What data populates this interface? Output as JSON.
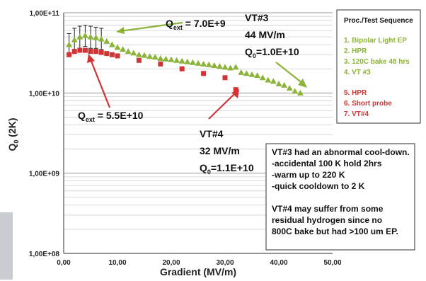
{
  "chart_data": {
    "type": "scatter",
    "title": "",
    "xlabel": "Gradient (MV/m)",
    "ylabel_main": "Q",
    "ylabel_sub": "0",
    "ylabel_tail": " (2K)",
    "xlim": [
      0,
      50
    ],
    "ylim": [
      100000000.0,
      100000000000.0
    ],
    "yscale": "log",
    "grid": "horizontal",
    "x_ticks": [
      0,
      10,
      20,
      30,
      40,
      50
    ],
    "x_tick_labels": [
      "0,00",
      "10,00",
      "20,00",
      "30,00",
      "40,00",
      "50,00"
    ],
    "y_ticks": [
      100000000.0,
      1000000000.0,
      10000000000.0,
      100000000000.0
    ],
    "y_tick_labels": [
      "1,00E+08",
      "1,00E+09",
      "1,00E+10",
      "1,00E+11"
    ],
    "series": [
      {
        "name": "VT #3",
        "color": "#8cb33a",
        "marker": "triangle",
        "points": [
          [
            1,
            40000000000.0
          ],
          [
            2,
            46000000000.0
          ],
          [
            3,
            50000000000.0
          ],
          [
            4,
            52000000000.0
          ],
          [
            5,
            50000000000.0
          ],
          [
            6,
            49000000000.0
          ],
          [
            7,
            47000000000.0
          ],
          [
            8,
            44000000000.0
          ],
          [
            9,
            40000000000.0
          ],
          [
            10,
            37000000000.0
          ],
          [
            11,
            35000000000.0
          ],
          [
            12,
            33000000000.0
          ],
          [
            13,
            31500000000.0
          ],
          [
            14,
            30000000000.0
          ],
          [
            15,
            29500000000.0
          ],
          [
            16,
            28500000000.0
          ],
          [
            17,
            28000000000.0
          ],
          [
            18,
            27000000000.0
          ],
          [
            19,
            26500000000.0
          ],
          [
            20,
            26000000000.0
          ],
          [
            21,
            25500000000.0
          ],
          [
            22,
            25000000000.0
          ],
          [
            23,
            24500000000.0
          ],
          [
            24,
            24000000000.0
          ],
          [
            25,
            23500000000.0
          ],
          [
            26,
            23000000000.0
          ],
          [
            27,
            22500000000.0
          ],
          [
            28,
            22000000000.0
          ],
          [
            29,
            21500000000.0
          ],
          [
            30,
            21000000000.0
          ],
          [
            31,
            20500000000.0
          ],
          [
            32,
            21000000000.0
          ],
          [
            33,
            18000000000.0
          ],
          [
            34,
            17500000000.0
          ],
          [
            35,
            17000000000.0
          ],
          [
            36,
            16500000000.0
          ],
          [
            37,
            15500000000.0
          ],
          [
            38,
            14500000000.0
          ],
          [
            39,
            14000000000.0
          ],
          [
            40,
            13000000000.0
          ],
          [
            41,
            12500000000.0
          ],
          [
            42,
            11500000000.0
          ],
          [
            43,
            10500000000.0
          ],
          [
            44,
            10000000000.0
          ]
        ],
        "error_bars": [
          [
            1,
            40000000000.0,
            29000000000.0,
            55000000000.0
          ],
          [
            2,
            46000000000.0,
            33000000000.0,
            64000000000.0
          ],
          [
            3,
            50000000000.0,
            36000000000.0,
            68000000000.0
          ],
          [
            4,
            52000000000.0,
            38000000000.0,
            70000000000.0
          ],
          [
            5,
            50000000000.0,
            36000000000.0,
            68000000000.0
          ],
          [
            6,
            49000000000.0,
            36000000000.0,
            66000000000.0
          ],
          [
            7,
            47000000000.0,
            35000000000.0,
            64000000000.0
          ]
        ]
      },
      {
        "name": "VT#4",
        "color": "#d03434",
        "marker": "square",
        "points": [
          [
            1,
            30000000000.0
          ],
          [
            2,
            33000000000.0
          ],
          [
            3,
            34000000000.0
          ],
          [
            4,
            34000000000.0
          ],
          [
            5,
            33000000000.0
          ],
          [
            6,
            33000000000.0
          ],
          [
            7,
            32000000000.0
          ],
          [
            8,
            31000000000.0
          ],
          [
            9,
            30000000000.0
          ],
          [
            10,
            29000000000.0
          ],
          [
            14,
            25500000000.0
          ],
          [
            18,
            23000000000.0
          ],
          [
            22,
            20000000000.0
          ],
          [
            26,
            17500000000.0
          ],
          [
            30,
            15500000000.0
          ],
          [
            32,
            11000000000.0
          ]
        ]
      }
    ],
    "annotations": {
      "qext_top_main": "Q",
      "qext_top_sub": "ext",
      "qext_top_tail": " = 7.0E+9",
      "qext_bottom_main": "Q",
      "qext_bottom_sub": "ext",
      "qext_bottom_tail": " = 5.5E+10",
      "vt3_line1": "VT#3",
      "vt3_line2": "44 MV/m",
      "vt3_q_main": "Q",
      "vt3_q_sub": "0",
      "vt3_q_tail": "=1.0E+10",
      "vt4_line1": "VT#4",
      "vt4_line2": "32 MV/m",
      "vt4_q_main": "Q",
      "vt4_q_sub": "0",
      "vt4_q_tail": "=1.1E+10"
    },
    "legend": {
      "title": "Proc./Test Sequence",
      "green_items": [
        "1.   Bipolar Light EP",
        "2.   HPR",
        "3.   120C bake 48 hrs",
        "4.   VT #3"
      ],
      "red_items": [
        "5.   HPR",
        "6.   Short probe",
        "7.   VT#4"
      ]
    },
    "note": [
      "VT#3 had an abnormal cool-down.",
      "-accidental 100 K hold 2hrs",
      "-warm  up to 220 K",
      "-quick cooldown to 2 K",
      "",
      "VT#4 may suffer from some",
      "residual hydrogen since no",
      "800C bake but had >100 um EP."
    ]
  }
}
